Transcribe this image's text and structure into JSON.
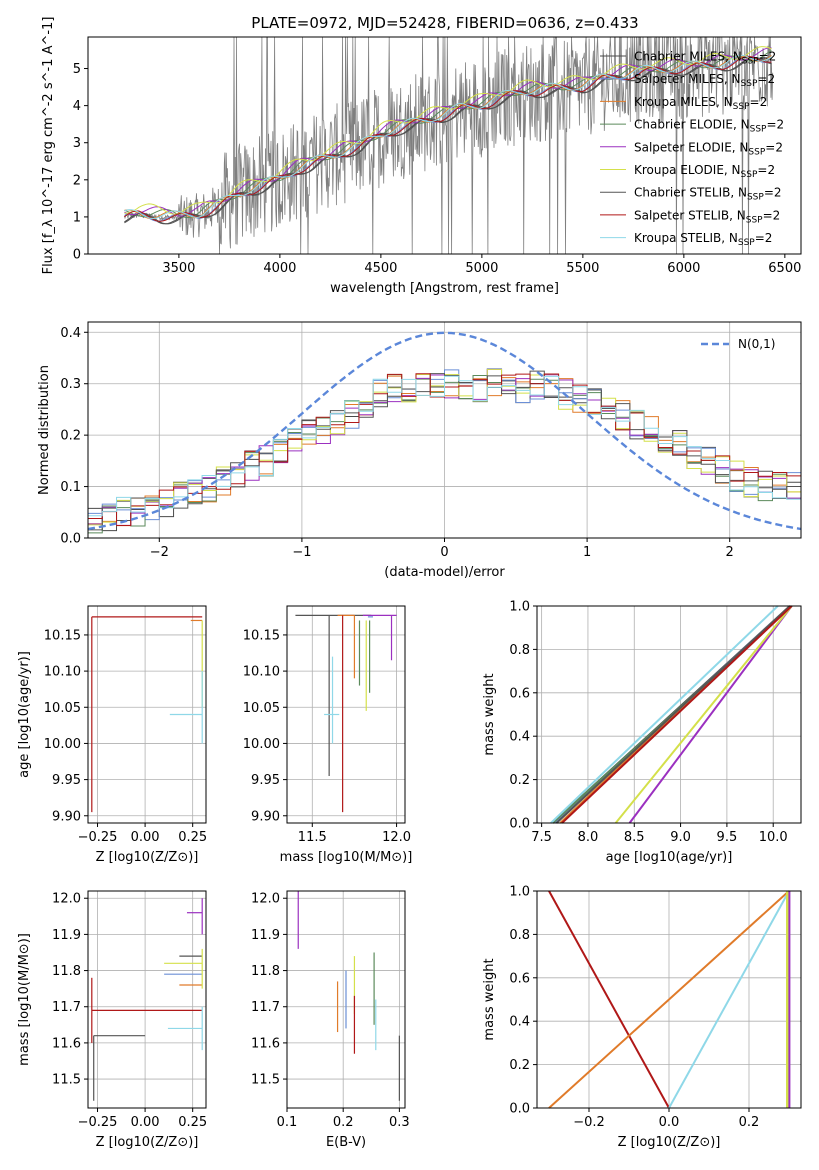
{
  "figure": {
    "title": "PLATE=0972, MJD=52428, FIBERID=0636, z=0.433"
  },
  "series_colors": [
    {
      "name": "Chabrier MILES",
      "color": "#4a4a4a"
    },
    {
      "name": "Salpeter MILES",
      "color": "#6b8fd6"
    },
    {
      "name": "Kroupa MILES",
      "color": "#e07b2a"
    },
    {
      "name": "Chabrier ELODIE",
      "color": "#5b8a5b"
    },
    {
      "name": "Salpeter ELODIE",
      "color": "#9b30c0"
    },
    {
      "name": "Kroupa ELODIE",
      "color": "#d4e04a"
    },
    {
      "name": "Chabrier STELIB",
      "color": "#555555"
    },
    {
      "name": "Salpeter STELIB",
      "color": "#b01818"
    },
    {
      "name": "Kroupa STELIB",
      "color": "#8fd8e8"
    }
  ],
  "chart_data": [
    {
      "id": "spectrum",
      "type": "line",
      "title": "PLATE=0972, MJD=52428, FIBERID=0636, z=0.433",
      "xlabel": "wavelength [Angstrom, rest frame]",
      "ylabel": "Flux [f_λ 10^-17 erg cm^-2 s^-1 A^-1]",
      "xlim": [
        3050,
        6580
      ],
      "ylim": [
        0,
        5.85
      ],
      "xticks": [
        3500,
        4000,
        4500,
        5000,
        5500,
        6000,
        6500
      ],
      "yticks": [
        0,
        1,
        2,
        3,
        4,
        5
      ],
      "grid": false,
      "legend_position": "top-right",
      "legend": [
        "Chabrier MILES, N_SSP=2",
        "Salpeter MILES, N_SSP=2",
        "Kroupa MILES, N_SSP=2",
        "Chabrier ELODIE, N_SSP=2",
        "Salpeter ELODIE, N_SSP=2",
        "Kroupa ELODIE, N_SSP=2",
        "Chabrier STELIB, N_SSP=2",
        "Salpeter STELIB, N_SSP=2",
        "Kroupa STELIB, N_SSP=2"
      ],
      "observed_range": [
        3230,
        6440
      ],
      "model_continuum": {
        "x": [
          3230,
          3300,
          3400,
          3500,
          3600,
          3700,
          3800,
          3900,
          4000,
          4100,
          4200,
          4300,
          4400,
          4500,
          4600,
          4700,
          4800,
          4900,
          5000,
          5100,
          5200,
          5300,
          5400,
          5500,
          5600,
          5700,
          5800,
          5900,
          6000,
          6100,
          6200,
          6300,
          6440
        ],
        "y": [
          1.0,
          1.05,
          1.0,
          0.98,
          1.05,
          1.3,
          1.6,
          1.8,
          2.0,
          2.3,
          2.5,
          2.7,
          2.9,
          3.2,
          3.4,
          3.55,
          3.7,
          3.9,
          4.0,
          4.2,
          4.35,
          4.4,
          4.45,
          4.5,
          4.7,
          4.8,
          4.9,
          4.95,
          5.0,
          5.05,
          5.1,
          5.2,
          5.3
        ]
      }
    },
    {
      "id": "residuals",
      "type": "line",
      "xlabel": "(data-model)/error",
      "ylabel": "Normed distribution",
      "xlim": [
        -2.5,
        2.5
      ],
      "ylim": [
        0,
        0.42
      ],
      "xticks": [
        -2,
        -1,
        0,
        1,
        2
      ],
      "yticks": [
        0.0,
        0.1,
        0.2,
        0.3,
        0.4
      ],
      "grid": true,
      "legend_position": "top-right",
      "legend": [
        "N(0,1)"
      ],
      "reference_curve": {
        "name": "N(0,1)",
        "mean": 0,
        "sigma": 1,
        "color": "#5b87d9"
      },
      "hist_bin_edges": [
        -2.5,
        -2.4,
        -2.3,
        -2.2,
        -2.1,
        -2.0,
        -1.9,
        -1.8,
        -1.7,
        -1.6,
        -1.5,
        -1.4,
        -1.3,
        -1.2,
        -1.1,
        -1.0,
        -0.9,
        -0.8,
        -0.7,
        -0.6,
        -0.5,
        -0.4,
        -0.3,
        -0.2,
        -0.1,
        0.0,
        0.1,
        0.2,
        0.3,
        0.4,
        0.5,
        0.6,
        0.7,
        0.8,
        0.9,
        1.0,
        1.1,
        1.2,
        1.3,
        1.4,
        1.5,
        1.6,
        1.7,
        1.8,
        1.9,
        2.0,
        2.1,
        2.2,
        2.3,
        2.4,
        2.5
      ],
      "hist_envelope": [
        0.03,
        0.04,
        0.05,
        0.05,
        0.06,
        0.07,
        0.08,
        0.09,
        0.1,
        0.11,
        0.12,
        0.14,
        0.15,
        0.17,
        0.19,
        0.2,
        0.21,
        0.23,
        0.24,
        0.26,
        0.28,
        0.29,
        0.29,
        0.3,
        0.3,
        0.3,
        0.29,
        0.29,
        0.3,
        0.29,
        0.29,
        0.3,
        0.29,
        0.28,
        0.27,
        0.26,
        0.25,
        0.24,
        0.22,
        0.21,
        0.19,
        0.18,
        0.16,
        0.15,
        0.13,
        0.12,
        0.11,
        0.1,
        0.1,
        0.1
      ]
    },
    {
      "id": "age-vs-Z",
      "type": "scatter",
      "xlabel": "Z [log10(Z/Z⊙)]",
      "ylabel": "age [log10(age/yr)]",
      "xlim": [
        -0.3,
        0.32
      ],
      "ylim": [
        9.89,
        10.19
      ],
      "xticks": [
        -0.25,
        0.0,
        0.25
      ],
      "yticks": [
        9.9,
        9.95,
        10.0,
        10.05,
        10.1,
        10.15
      ],
      "grid": true
    },
    {
      "id": "age-vs-mass",
      "type": "scatter",
      "xlabel": "mass [log10(M/M⊙)]",
      "ylabel": "",
      "xlim": [
        11.35,
        12.05
      ],
      "ylim": [
        9.89,
        10.19
      ],
      "xticks": [
        11.5,
        12.0
      ],
      "yticks": [
        9.9,
        9.95,
        10.0,
        10.05,
        10.1,
        10.15
      ],
      "grid": true
    },
    {
      "id": "cumulative-age",
      "type": "line",
      "xlabel": "age [log10(age/yr)]",
      "ylabel": "mass weight",
      "xlim": [
        7.45,
        10.3
      ],
      "ylim": [
        0,
        1
      ],
      "xticks": [
        7.5,
        8.0,
        8.5,
        9.0,
        9.5,
        10.0
      ],
      "yticks": [
        0.0,
        0.2,
        0.4,
        0.6,
        0.8,
        1.0
      ],
      "grid": true,
      "series": [
        {
          "name": "Chabrier MILES",
          "x": [
            7.62,
            10.18
          ],
          "y": [
            0,
            1
          ]
        },
        {
          "name": "Salpeter MILES",
          "x": [
            7.65,
            10.18
          ],
          "y": [
            0,
            1
          ]
        },
        {
          "name": "Kroupa MILES",
          "x": [
            7.7,
            10.18
          ],
          "y": [
            0,
            1
          ]
        },
        {
          "name": "Chabrier ELODIE",
          "x": [
            7.62,
            10.2
          ],
          "y": [
            0,
            1
          ]
        },
        {
          "name": "Salpeter ELODIE",
          "x": [
            8.45,
            10.2
          ],
          "y": [
            0,
            1
          ]
        },
        {
          "name": "Kroupa ELODIE",
          "x": [
            8.3,
            10.2
          ],
          "y": [
            0,
            1
          ]
        },
        {
          "name": "Chabrier STELIB",
          "x": [
            7.66,
            10.18
          ],
          "y": [
            0,
            1
          ]
        },
        {
          "name": "Salpeter STELIB",
          "x": [
            7.72,
            10.2
          ],
          "y": [
            0,
            1
          ]
        },
        {
          "name": "Kroupa STELIB",
          "x": [
            7.6,
            10.05
          ],
          "y": [
            0,
            1
          ]
        }
      ]
    },
    {
      "id": "mass-vs-Z",
      "type": "scatter",
      "xlabel": "Z [log10(Z/Z⊙)]",
      "ylabel": "mass [log10(M/M⊙)]",
      "xlim": [
        -0.3,
        0.32
      ],
      "ylim": [
        11.42,
        12.02
      ],
      "xticks": [
        -0.25,
        0.0,
        0.25
      ],
      "yticks": [
        11.5,
        11.6,
        11.7,
        11.8,
        11.9,
        12.0
      ],
      "grid": true
    },
    {
      "id": "mass-vs-ebv",
      "type": "scatter",
      "xlabel": "E(B-V)",
      "ylabel": "",
      "xlim": [
        0.1,
        0.31
      ],
      "ylim": [
        11.42,
        12.02
      ],
      "xticks": [
        0.1,
        0.2,
        0.3
      ],
      "yticks": [
        11.5,
        11.6,
        11.7,
        11.8,
        11.9,
        12.0
      ],
      "grid": true,
      "points": [
        {
          "name": "Salpeter ELODIE",
          "x": 0.12,
          "y": 11.94,
          "err": 0.08
        },
        {
          "name": "Kroupa MILES",
          "x": 0.19,
          "y": 11.7,
          "err": 0.07
        },
        {
          "name": "Salpeter MILES",
          "x": 0.205,
          "y": 11.72,
          "err": 0.08
        },
        {
          "name": "Kroupa ELODIE",
          "x": 0.22,
          "y": 11.76,
          "err": 0.08
        },
        {
          "name": "Salpeter STELIB",
          "x": 0.22,
          "y": 11.65,
          "err": 0.08
        },
        {
          "name": "Chabrier ELODIE",
          "x": 0.255,
          "y": 11.75,
          "err": 0.1
        },
        {
          "name": "Kroupa STELIB",
          "x": 0.258,
          "y": 11.65,
          "err": 0.07
        },
        {
          "name": "Chabrier STELIB",
          "x": 0.3,
          "y": 11.53,
          "err": 0.09
        }
      ]
    },
    {
      "id": "cumulative-Z",
      "type": "line",
      "xlabel": "Z [log10(Z/Z⊙)]",
      "ylabel": "mass weight",
      "xlim": [
        -0.33,
        0.33
      ],
      "ylim": [
        0,
        1
      ],
      "xticks": [
        -0.2,
        0.0,
        0.2
      ],
      "yticks": [
        0.0,
        0.2,
        0.4,
        0.6,
        0.8,
        1.0
      ],
      "grid": true,
      "series": [
        {
          "name": "Salpeter STELIB",
          "x": [
            -0.3,
            0.0
          ],
          "y": [
            1,
            0
          ]
        },
        {
          "name": "Kroupa MILES",
          "x": [
            -0.3,
            0.3
          ],
          "y": [
            0,
            1
          ]
        },
        {
          "name": "Kroupa STELIB",
          "x": [
            0.0,
            0.3
          ],
          "y": [
            0,
            1
          ]
        },
        {
          "name": "Kroupa ELODIE",
          "x": [
            0.3,
            0.3
          ],
          "y": [
            0,
            1
          ]
        }
      ]
    }
  ]
}
